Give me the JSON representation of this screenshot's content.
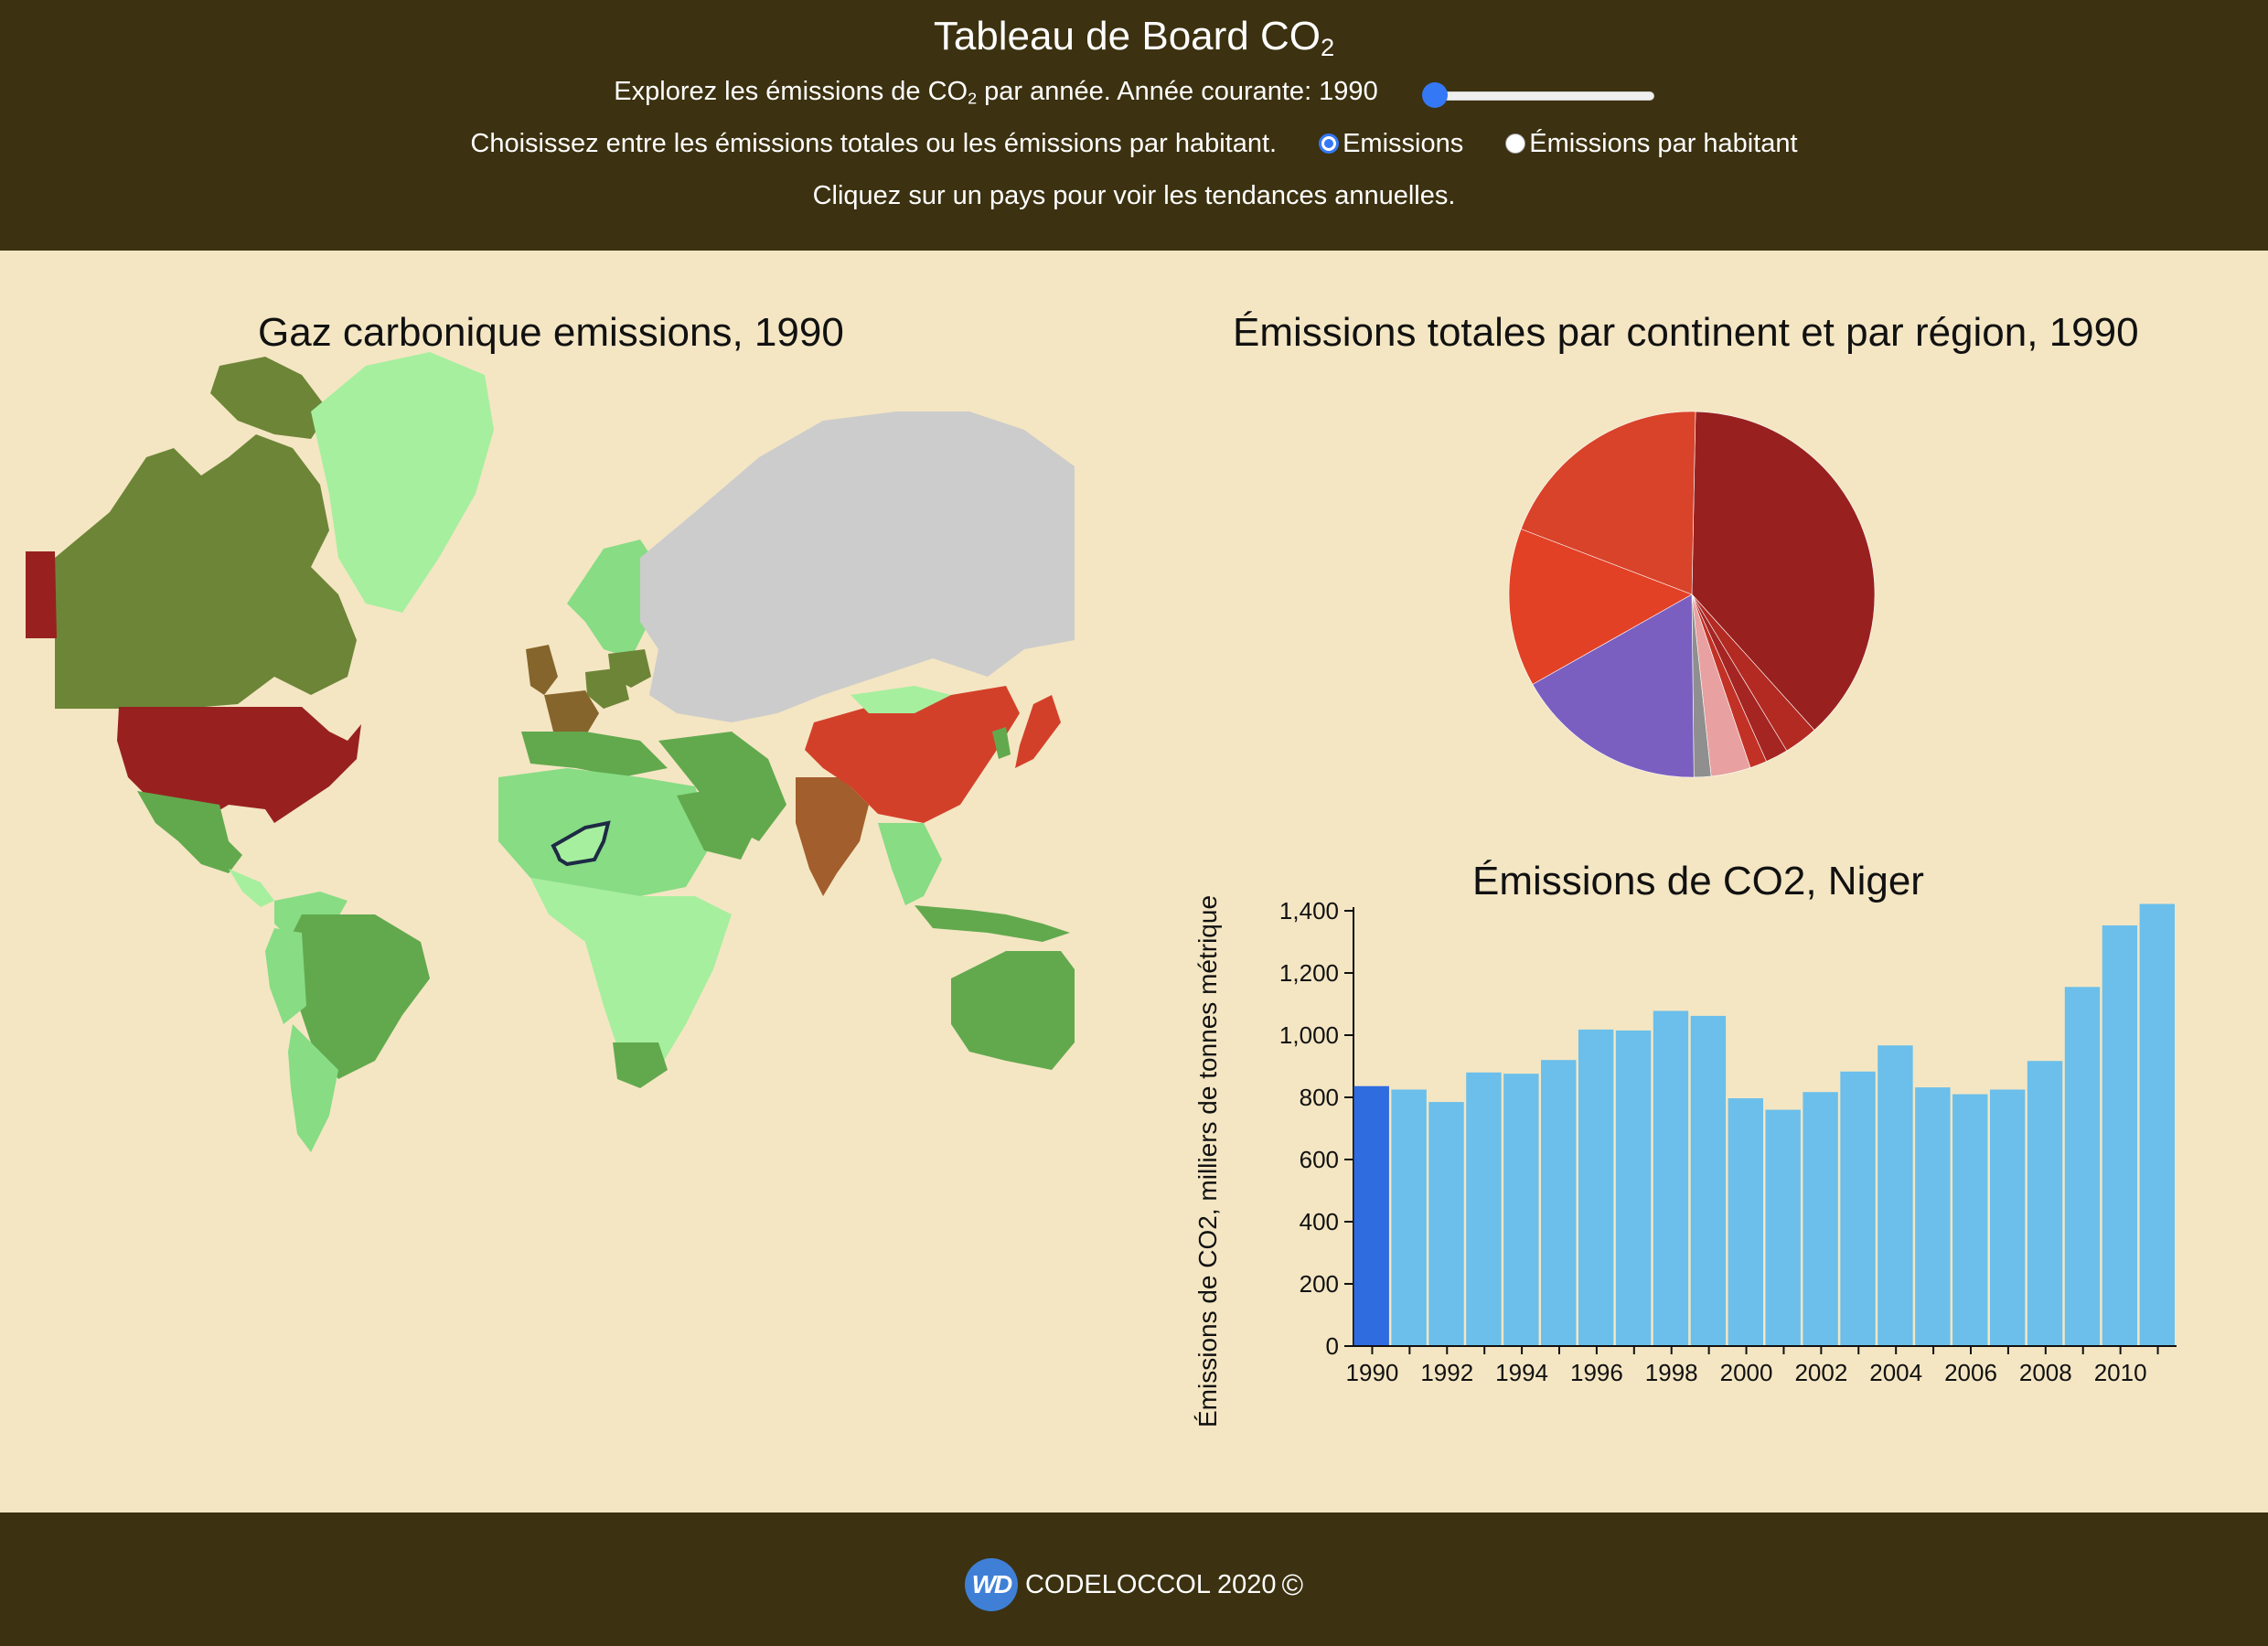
{
  "header": {
    "title_main": "Tableau de Board CO",
    "title_sub": "2",
    "year_prompt_a": "Explorez les émissions de CO",
    "year_prompt_sub": "2",
    "year_prompt_b": " par année. Année courante: 1990",
    "slider": {
      "min": 1990,
      "max": 2011,
      "value": 1990
    },
    "mode_prompt": "Choisissez entre les émissions totales ou les émissions par habitant.",
    "radio_emissions": "Emissions",
    "radio_per_capita": "Émissions par habitant",
    "selected_mode": "Emissions",
    "hint": "Cliquez sur un pays pour voir les tendances annuelles."
  },
  "map": {
    "title": "Gaz carbonique emissions, 1990",
    "selected_country": "Niger",
    "colors": {
      "no_data": "#cccccc",
      "level_1": "#a6ef9e",
      "level_2": "#87dc84",
      "level_3": "#62a94e",
      "level_4": "#6d8537",
      "level_5": "#86652c",
      "level_6": "#a25e2c",
      "level_7": "#d3402a",
      "level_8": "#982120",
      "highlight": "#1e2a45"
    }
  },
  "pie": {
    "title": "Émissions totales par continent et par région, 1990"
  },
  "bar": {
    "title": "Émissions de CO2, Niger",
    "highlight_color": "#2f6ce0",
    "bar_color": "#6bbfea"
  },
  "chart_data": [
    {
      "type": "pie",
      "title": "Émissions totales par continent et par région, 1990",
      "slices": [
        {
          "color": "#982120",
          "value": 38
        },
        {
          "color": "#b32a22",
          "value": 3
        },
        {
          "color": "#a52523",
          "value": 2
        },
        {
          "color": "#c23126",
          "value": 1.5
        },
        {
          "color": "#e8a0a0",
          "value": 3.5
        },
        {
          "color": "#8f8f8f",
          "value": 1.5
        },
        {
          "color": "#7a5fc0",
          "value": 17
        },
        {
          "color": "#e24125",
          "value": 14
        },
        {
          "color": "#d8432a",
          "value": 19.5
        }
      ]
    },
    {
      "type": "bar",
      "title": "Émissions de CO2, Niger",
      "xlabel": "",
      "ylabel": "Émissions de CO2, milliers de tonnes métrique",
      "ylim": [
        0,
        1400
      ],
      "yticks": [
        0,
        200,
        400,
        600,
        800,
        1000,
        1200,
        1400
      ],
      "yticklabels": [
        "0",
        "200",
        "400",
        "600",
        "800",
        "1,000",
        "1,200",
        "1,400"
      ],
      "xticklabels": [
        "1990",
        "1992",
        "1994",
        "1996",
        "1998",
        "2000",
        "2002",
        "2004",
        "2006",
        "2008",
        "2010"
      ],
      "categories": [
        1990,
        1991,
        1992,
        1993,
        1994,
        1995,
        1996,
        1997,
        1998,
        1999,
        2000,
        2001,
        2002,
        2003,
        2004,
        2005,
        2006,
        2007,
        2008,
        2009,
        2010,
        2011
      ],
      "values": [
        836,
        825,
        785,
        880,
        876,
        920,
        1018,
        1015,
        1078,
        1062,
        797,
        760,
        817,
        883,
        967,
        832,
        810,
        825,
        917,
        1155,
        1353,
        1422
      ],
      "highlight": 1990
    }
  ],
  "footer": {
    "logo_text": "WD",
    "text": "CODELOCCOL 2020",
    "copyright_symbol": "©"
  }
}
